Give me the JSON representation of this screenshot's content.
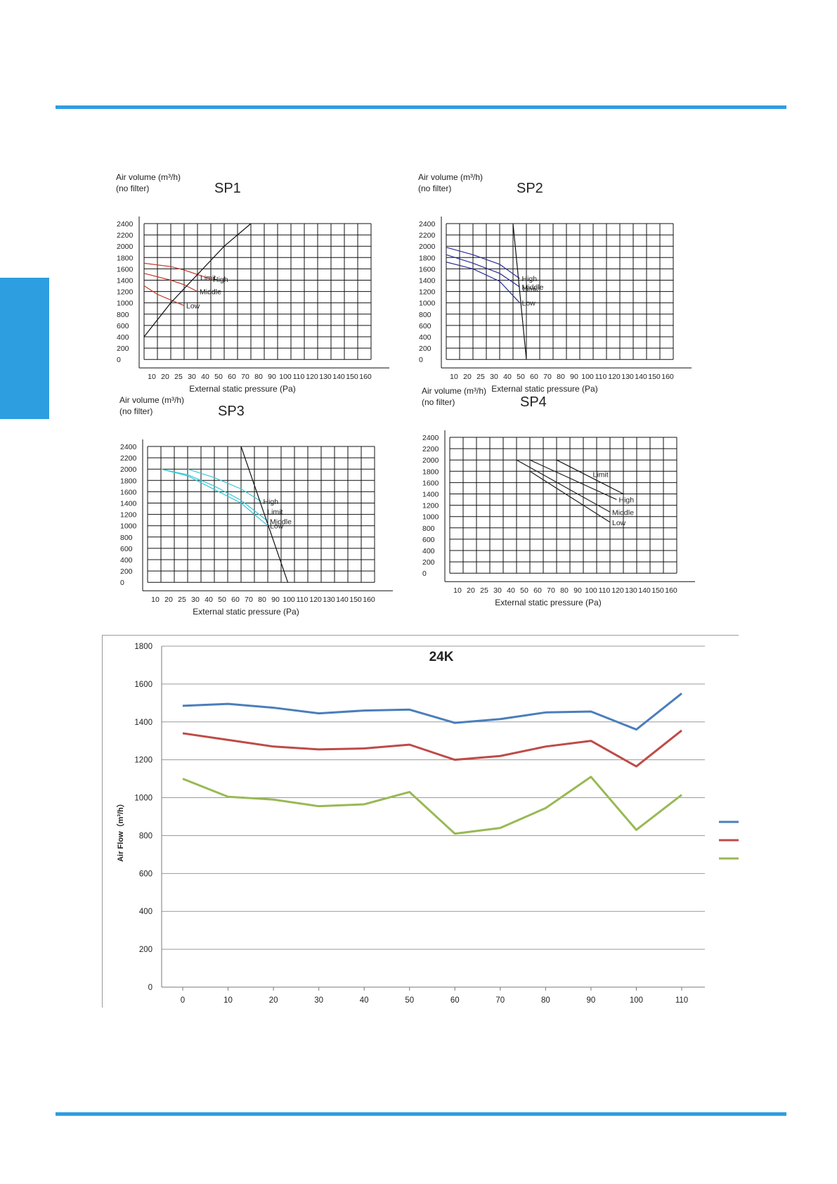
{
  "page": {
    "accent": "#2d9ee0"
  },
  "sp_panels": [
    {
      "id": "sp1",
      "title": "SP1",
      "ylabel_line1": "Air volume (m³/h)",
      "ylabel_line2": "(no filter)",
      "xlabel": "External static pressure (Pa)",
      "curve_color": "#c0392b",
      "curve_labels": [
        "Limit",
        "High",
        "Middle",
        "Low"
      ]
    },
    {
      "id": "sp2",
      "title": "SP2",
      "ylabel_line1": "Air volume (m³/h)",
      "ylabel_line2": "(no filter)",
      "xlabel": "External static pressure (Pa)",
      "curve_color": "#2a2a9a",
      "curve_labels": [
        "Limit",
        "High",
        "Middle",
        "Low"
      ]
    },
    {
      "id": "sp3",
      "title": "SP3",
      "ylabel_line1": "Air volume (m³/h)",
      "ylabel_line2": "(no filter)",
      "xlabel": "External static pressure (Pa)",
      "curve_color": "#35c9d6",
      "curve_labels": [
        "Limit",
        "High",
        "Middle",
        "Low"
      ]
    },
    {
      "id": "sp4",
      "title": "SP4",
      "ylabel_line1": "Air volume (m³/h)",
      "ylabel_line2": "(no filter)",
      "xlabel": "External static pressure (Pa)",
      "curve_color": "#222222",
      "curve_labels": [
        "Limit",
        "High",
        "Middle",
        "Low"
      ]
    }
  ],
  "sp_axis": {
    "y_ticks": [
      "2400",
      "2200",
      "2000",
      "1800",
      "1600",
      "1400",
      "1200",
      "1000",
      "800",
      "600",
      "400",
      "200",
      "0"
    ],
    "x_ticks": [
      "10",
      "20",
      "25",
      "30",
      "40",
      "50",
      "60",
      "70",
      "80",
      "90",
      "100",
      "110",
      "120",
      "130",
      "140",
      "150",
      "160"
    ]
  },
  "chart_data": [
    {
      "type": "line",
      "title": "SP1",
      "xlabel": "External static pressure (Pa)",
      "ylabel": "Air volume (m³/h) (no filter)",
      "categories": [
        "10",
        "20",
        "25",
        "30",
        "40",
        "50",
        "60",
        "70",
        "80",
        "90",
        "100",
        "110",
        "120",
        "130",
        "140",
        "150",
        "160"
      ],
      "ylim": [
        0,
        2400
      ],
      "series": [
        {
          "name": "High",
          "x": [
            0,
            2,
            3,
            4,
            5
          ],
          "y": [
            1700,
            1640,
            1580,
            1500,
            1420
          ]
        },
        {
          "name": "Middle",
          "x": [
            0,
            2,
            3,
            4
          ],
          "y": [
            1520,
            1400,
            1320,
            1200
          ]
        },
        {
          "name": "Low",
          "x": [
            0,
            1,
            2,
            3
          ],
          "y": [
            1300,
            1150,
            1050,
            950
          ]
        },
        {
          "name": "Limit",
          "x": [
            0,
            2,
            4,
            6,
            8
          ],
          "y": [
            400,
            1000,
            1500,
            2000,
            2400
          ]
        }
      ]
    },
    {
      "type": "line",
      "title": "SP2",
      "xlabel": "External static pressure (Pa)",
      "ylabel": "Air volume (m³/h) (no filter)",
      "categories": [
        "10",
        "20",
        "25",
        "30",
        "40",
        "50",
        "60",
        "70",
        "80",
        "90",
        "100",
        "110",
        "120",
        "130",
        "140",
        "150",
        "160"
      ],
      "ylim": [
        0,
        2400
      ],
      "series": [
        {
          "name": "High",
          "x": [
            0,
            2,
            4,
            5.5
          ],
          "y": [
            1980,
            1850,
            1680,
            1430
          ]
        },
        {
          "name": "Middle",
          "x": [
            0,
            2,
            4,
            5.5
          ],
          "y": [
            1850,
            1700,
            1520,
            1280
          ]
        },
        {
          "name": "Low",
          "x": [
            0,
            2,
            4,
            5.5
          ],
          "y": [
            1720,
            1600,
            1380,
            1000
          ]
        },
        {
          "name": "Limit",
          "x": [
            5,
            6
          ],
          "y": [
            2400,
            0
          ]
        }
      ]
    },
    {
      "type": "line",
      "title": "SP3",
      "xlabel": "External static pressure (Pa)",
      "ylabel": "Air volume (m³/h) (no filter)",
      "categories": [
        "10",
        "20",
        "25",
        "30",
        "40",
        "50",
        "60",
        "70",
        "80",
        "90",
        "100",
        "110",
        "120",
        "130",
        "140",
        "150",
        "160"
      ],
      "ylim": [
        0,
        2400
      ],
      "series": [
        {
          "name": "High",
          "x": [
            3,
            5,
            7,
            8.5
          ],
          "y": [
            2000,
            1850,
            1650,
            1430
          ]
        },
        {
          "name": "Middle",
          "x": [
            1,
            3,
            5,
            7,
            9
          ],
          "y": [
            2000,
            1900,
            1700,
            1450,
            1080
          ]
        },
        {
          "name": "Low",
          "x": [
            1,
            3,
            5,
            7,
            9
          ],
          "y": [
            2000,
            1880,
            1640,
            1400,
            1000
          ]
        },
        {
          "name": "Limit",
          "x": [
            7,
            10.5
          ],
          "y": [
            2400,
            0
          ]
        }
      ]
    },
    {
      "type": "line",
      "title": "SP4",
      "xlabel": "External static pressure (Pa)",
      "ylabel": "Air volume (m³/h) (no filter)",
      "categories": [
        "10",
        "20",
        "25",
        "30",
        "40",
        "50",
        "60",
        "70",
        "80",
        "90",
        "100",
        "110",
        "120",
        "130",
        "140",
        "150",
        "160"
      ],
      "ylim": [
        0,
        2400
      ],
      "series": [
        {
          "name": "Limit",
          "x": [
            8,
            13
          ],
          "y": [
            2000,
            1400
          ]
        },
        {
          "name": "High",
          "x": [
            6,
            12.5
          ],
          "y": [
            2000,
            1300
          ]
        },
        {
          "name": "Middle",
          "x": [
            5,
            12
          ],
          "y": [
            2000,
            1080
          ]
        },
        {
          "name": "Low",
          "x": [
            6,
            12
          ],
          "y": [
            1800,
            900
          ]
        }
      ]
    },
    {
      "type": "line",
      "title": "24K",
      "xlabel": "",
      "ylabel": "Air Flow（m³/h）",
      "x": [
        0,
        10,
        20,
        30,
        40,
        50,
        60,
        70,
        80,
        90,
        100,
        110
      ],
      "ylim": [
        0,
        1800
      ],
      "y_ticks": [
        0,
        200,
        400,
        600,
        800,
        1000,
        1200,
        1400,
        1600,
        1800
      ],
      "grid": true,
      "legend": "right",
      "series": [
        {
          "color": "#4a7ebb",
          "values": [
            1485,
            1495,
            1475,
            1445,
            1460,
            1465,
            1395,
            1415,
            1450,
            1455,
            1360,
            1550
          ]
        },
        {
          "color": "#be4b48",
          "values": [
            1340,
            1305,
            1270,
            1255,
            1260,
            1280,
            1200,
            1220,
            1270,
            1300,
            1165,
            1355
          ]
        },
        {
          "color": "#98b954",
          "values": [
            1100,
            1005,
            990,
            955,
            965,
            1030,
            810,
            840,
            945,
            1110,
            830,
            1015
          ]
        }
      ]
    }
  ]
}
